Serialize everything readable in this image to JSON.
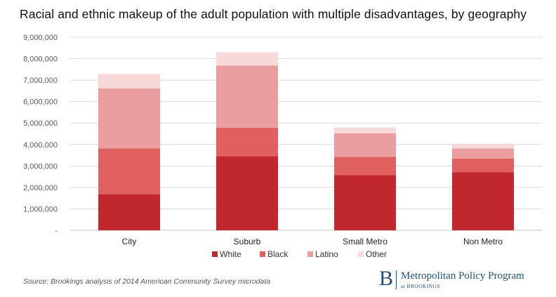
{
  "chart_data": {
    "type": "bar",
    "stacked": true,
    "title": "Racial and ethnic makeup of the adult population with multiple disadvantages, by geography",
    "xlabel": "",
    "ylabel": "",
    "ylim": [
      0,
      9000000
    ],
    "y_ticks": [
      {
        "value": 0,
        "label": "-"
      },
      {
        "value": 1000000,
        "label": "1,000,000"
      },
      {
        "value": 2000000,
        "label": "2,000,000"
      },
      {
        "value": 3000000,
        "label": "3,000,000"
      },
      {
        "value": 4000000,
        "label": "4,000,000"
      },
      {
        "value": 5000000,
        "label": "5,000,000"
      },
      {
        "value": 6000000,
        "label": "6,000,000"
      },
      {
        "value": 7000000,
        "label": "7,000,000"
      },
      {
        "value": 8000000,
        "label": "8,000,000"
      },
      {
        "value": 9000000,
        "label": "9,000,000"
      }
    ],
    "grid": true,
    "legend_position": "bottom",
    "categories": [
      "City",
      "Suburb",
      "Small Metro",
      "Non Metro"
    ],
    "series": [
      {
        "name": "White",
        "color": "#c0282d",
        "values": [
          1680000,
          3450000,
          2570000,
          2700000
        ]
      },
      {
        "name": "Black",
        "color": "#e06060",
        "values": [
          2140000,
          1330000,
          850000,
          640000
        ]
      },
      {
        "name": "Latino",
        "color": "#eb9e9f",
        "values": [
          2790000,
          2900000,
          1100000,
          480000
        ]
      },
      {
        "name": "Other",
        "color": "#f8d9da",
        "values": [
          680000,
          620000,
          270000,
          220000
        ]
      }
    ]
  },
  "footer": {
    "source": "Source: Brookings analysis of 2014 American Community Survey microdata"
  },
  "brand": {
    "mark": "B",
    "name": "Metropolitan Policy Program",
    "sub": "at BROOKINGS"
  }
}
